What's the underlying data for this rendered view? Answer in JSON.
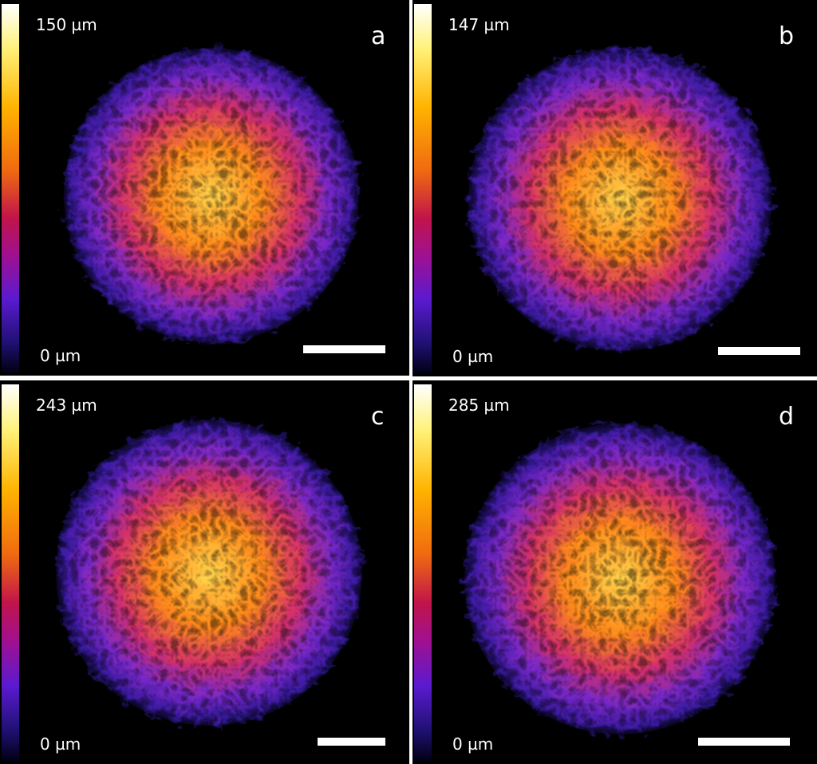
{
  "panels": [
    {
      "letter": "a",
      "max_label": "150 µm",
      "min_label": "0 µm"
    },
    {
      "letter": "b",
      "max_label": "147 µm",
      "min_label": "0 µm"
    },
    {
      "letter": "c",
      "max_label": "243 µm",
      "min_label": "0 µm"
    },
    {
      "letter": "d",
      "max_label": "285 µm",
      "min_label": "0 µm"
    }
  ]
}
